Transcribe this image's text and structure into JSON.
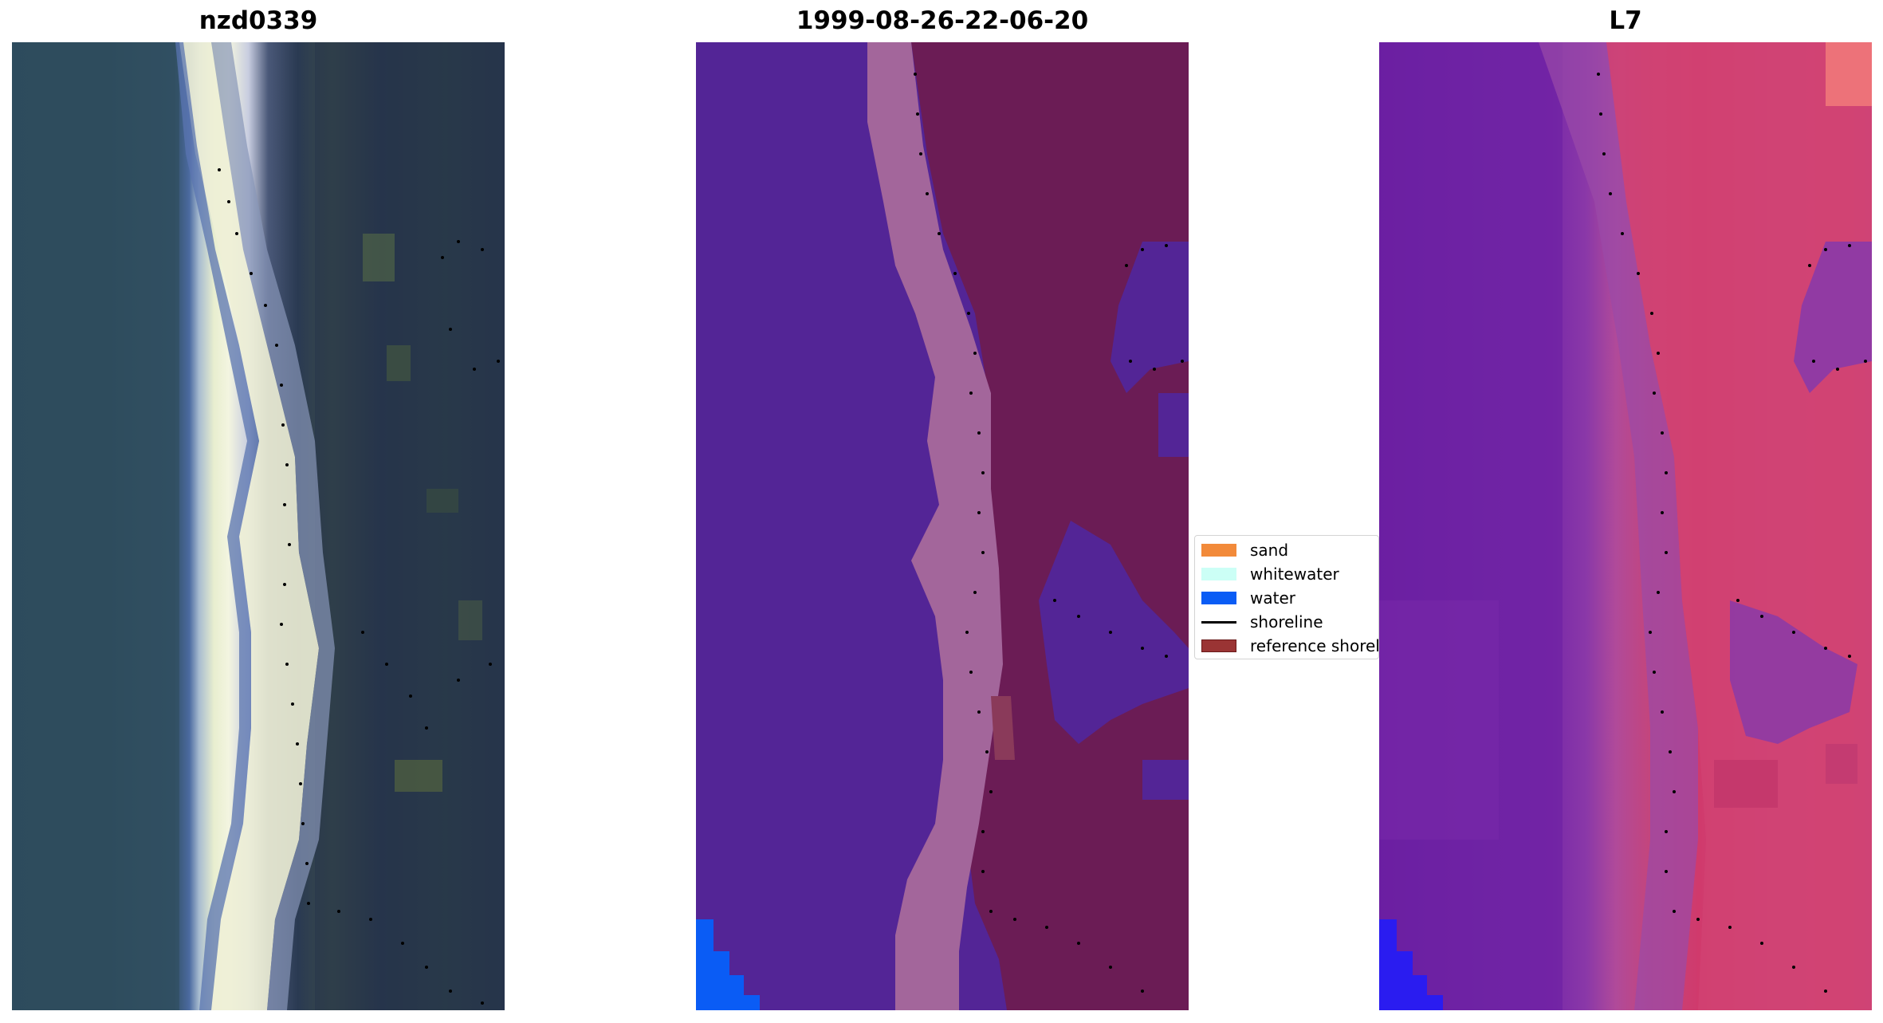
{
  "panels": [
    {
      "title": "nzd0339"
    },
    {
      "title": "1999-08-26-22-06-20"
    },
    {
      "title": "L7"
    }
  ],
  "legend": {
    "items": [
      {
        "label": "sand",
        "color": "#f28a3a",
        "kind": "patch"
      },
      {
        "label": "whitewater",
        "color": "#ccfff6",
        "kind": "patch"
      },
      {
        "label": "water",
        "color": "#0a5cf5",
        "kind": "patch"
      },
      {
        "label": "shoreline",
        "color": "#000000",
        "kind": "line"
      },
      {
        "label": "reference shoreline",
        "color": "#9a3434",
        "kind": "patch"
      }
    ]
  },
  "colors": {
    "water_class": "#532596",
    "sand_class": "#a3669b",
    "land_class": "#6b1c55",
    "water_blue": "#0a5cf5",
    "l7_blue": "#2a1cf0",
    "shoreline_dots": "#000000"
  }
}
